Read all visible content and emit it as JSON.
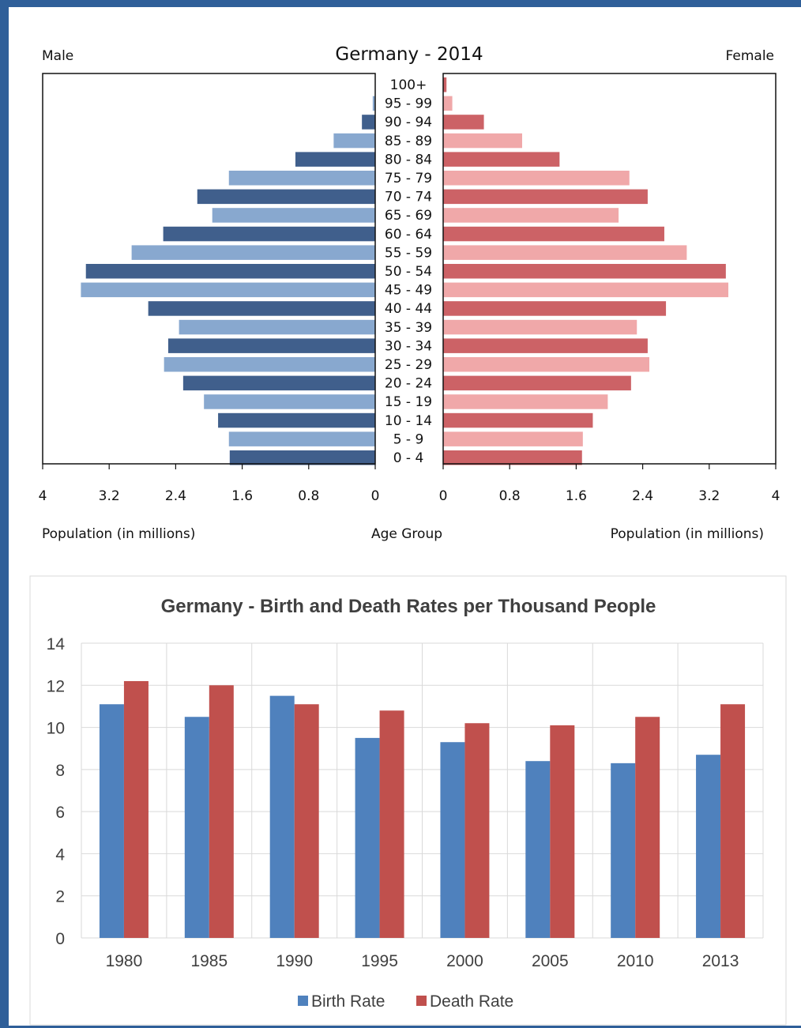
{
  "chart_data": [
    {
      "type": "bar",
      "orientation": "horizontal",
      "title": "Germany - 2014",
      "left_label": "Male",
      "right_label": "Female",
      "xlabel_left": "Population (in millions)",
      "xlabel_center": "Age Group",
      "xlabel_right": "Population (in millions)",
      "xlim": [
        0,
        4
      ],
      "x_ticks_left": [
        "4",
        "3.2",
        "2.4",
        "1.6",
        "0.8",
        "0"
      ],
      "x_ticks_right": [
        "0",
        "0.8",
        "1.6",
        "2.4",
        "3.2",
        "4"
      ],
      "categories": [
        "100+",
        "95 - 99",
        "90 - 94",
        "85 - 89",
        "80 - 84",
        "75 - 79",
        "70 - 74",
        "65 - 69",
        "60 - 64",
        "55 - 59",
        "50 - 54",
        "45 - 49",
        "40 - 44",
        "35 - 39",
        "30 - 34",
        "25 - 29",
        "20 - 24",
        "15 - 19",
        "10 - 14",
        "5 - 9",
        "0 - 4"
      ],
      "series": [
        {
          "name": "Male",
          "values": [
            0.005,
            0.03,
            0.16,
            0.5,
            0.96,
            1.76,
            2.14,
            1.96,
            2.55,
            2.93,
            3.48,
            3.54,
            2.73,
            2.36,
            2.49,
            2.54,
            2.31,
            2.06,
            1.89,
            1.76,
            1.75
          ]
        },
        {
          "name": "Female",
          "values": [
            0.04,
            0.11,
            0.49,
            0.95,
            1.4,
            2.24,
            2.46,
            2.11,
            2.66,
            2.93,
            3.4,
            3.43,
            2.68,
            2.33,
            2.46,
            2.48,
            2.26,
            1.98,
            1.8,
            1.68,
            1.67
          ]
        }
      ],
      "colors": {
        "male_dark": "#405f8c",
        "male_light": "#88a8cf",
        "female_dark": "#cc6266",
        "female_light": "#f0a8a9"
      }
    },
    {
      "type": "bar",
      "title": "Germany - Birth and Death Rates per Thousand People",
      "categories": [
        "1980",
        "1985",
        "1990",
        "1995",
        "2000",
        "2005",
        "2010",
        "2013"
      ],
      "ylim": [
        0,
        14
      ],
      "y_ticks": [
        "0",
        "2",
        "4",
        "6",
        "8",
        "10",
        "12",
        "14"
      ],
      "series": [
        {
          "name": "Birth Rate",
          "values": [
            11.1,
            10.5,
            11.5,
            9.5,
            9.3,
            8.4,
            8.3,
            8.7
          ],
          "color": "#4f81bd"
        },
        {
          "name": "Death Rate",
          "values": [
            12.2,
            12.0,
            11.1,
            10.8,
            10.2,
            10.1,
            10.5,
            11.1
          ],
          "color": "#c0504d"
        }
      ],
      "legend": "bottom",
      "grid": true
    }
  ]
}
